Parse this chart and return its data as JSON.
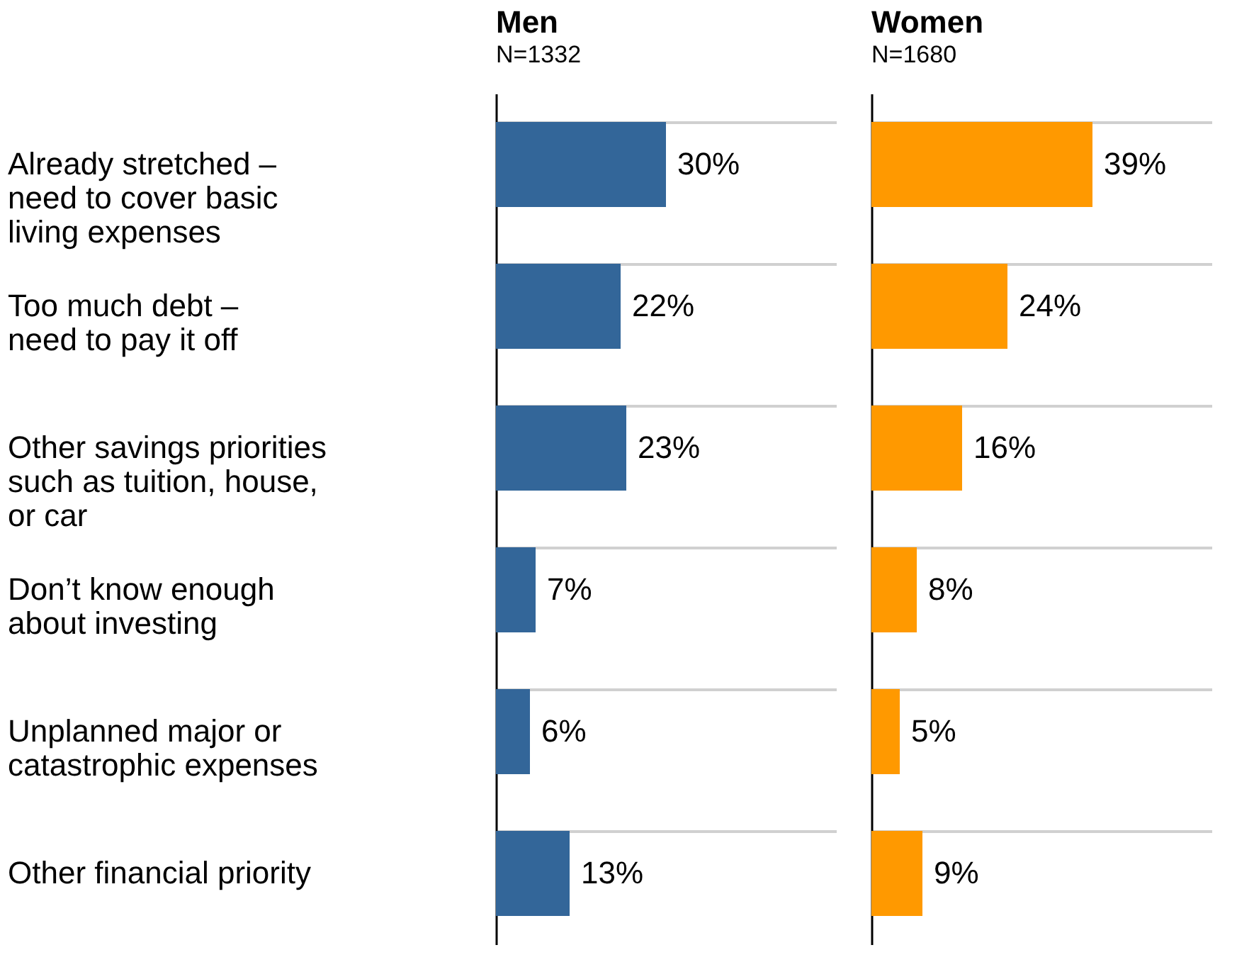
{
  "chart_data": [
    {
      "type": "bar",
      "orientation": "horizontal",
      "title": "Men",
      "subtitle": "N=1332",
      "categories": [
        "Already stretched –\nneed to cover basic\nliving expenses",
        "Too much debt –\nneed to pay it off",
        "Other savings priorities\nsuch as tuition, house,\nor car",
        "Don’t know enough\nabout investing",
        "Unplanned major or\ncatastrophic expenses",
        "Other financial priority"
      ],
      "values": [
        30,
        22,
        23,
        7,
        6,
        13
      ],
      "value_labels": [
        "30%",
        "22%",
        "23%",
        "7%",
        "6%",
        "13%"
      ],
      "color": "#336699",
      "xlim": [
        0,
        60
      ],
      "grid": "y",
      "tick_labels": "y"
    },
    {
      "type": "bar",
      "orientation": "horizontal",
      "title": "Women",
      "subtitle": "N=1680",
      "values": [
        39,
        24,
        16,
        8,
        5,
        9
      ],
      "value_labels": [
        "39%",
        "24%",
        "16%",
        "8%",
        "5%",
        "9%"
      ],
      "color": "#ff9900",
      "xlim": [
        0,
        60
      ],
      "grid": "y",
      "tick_labels": false
    }
  ]
}
